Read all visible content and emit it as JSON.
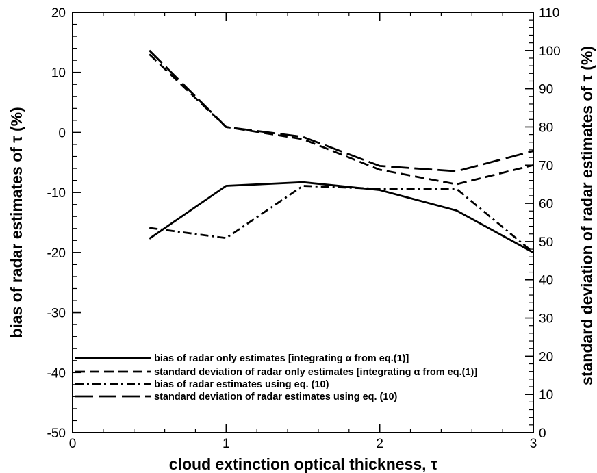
{
  "chart_data": {
    "type": "line",
    "xlabel": "cloud extinction optical thickness, τ",
    "ylabel_left": "bias of radar estimates of  τ (%)",
    "ylabel_right": "standard deviation of radar estimates of  τ (%)",
    "xlim": [
      0,
      3
    ],
    "ylim_left": [
      -50,
      20
    ],
    "ylim_right": [
      0,
      110
    ],
    "x_ticks": [
      "0",
      "1",
      "2",
      "3"
    ],
    "y_ticks_left": [
      "-50",
      "-40",
      "-30",
      "-20",
      "-10",
      "0",
      "10",
      "20"
    ],
    "y_ticks_right": [
      "0",
      "10",
      "20",
      "30",
      "40",
      "50",
      "60",
      "70",
      "80",
      "90",
      "100",
      "110"
    ],
    "grid": false,
    "legend_position": "lower-left",
    "series": [
      {
        "name": "bias of radar only estimates [integrating α from eq.(1)]",
        "axis": "left",
        "style": "solid",
        "x": [
          0.5,
          1,
          1.5,
          2,
          2.5,
          3
        ],
        "y": [
          -17.7,
          -8.9,
          -8.3,
          -9.6,
          -13,
          -20
        ]
      },
      {
        "name": "standard deviation of radar only estimates [integrating α from eq.(1)]",
        "axis": "right",
        "style": "dashed",
        "x": [
          0.5,
          1,
          1.5,
          2,
          2.5,
          3
        ],
        "y": [
          99,
          80,
          76.8,
          68.8,
          65,
          70
        ]
      },
      {
        "name": "bias of radar estimates using eq. (10)",
        "axis": "left",
        "style": "dashdot",
        "x": [
          0.5,
          1,
          1.5,
          2,
          2.5,
          3
        ],
        "y": [
          -15.9,
          -17.6,
          -8.9,
          -9.4,
          -9.4,
          -20
        ]
      },
      {
        "name": "standard deviation of radar estimates using eq. (10)",
        "axis": "right",
        "style": "longdash",
        "x": [
          0.5,
          1,
          1.5,
          2,
          2.5,
          3
        ],
        "y": [
          100,
          80,
          77.4,
          69.8,
          68.4,
          73.7
        ]
      }
    ]
  }
}
